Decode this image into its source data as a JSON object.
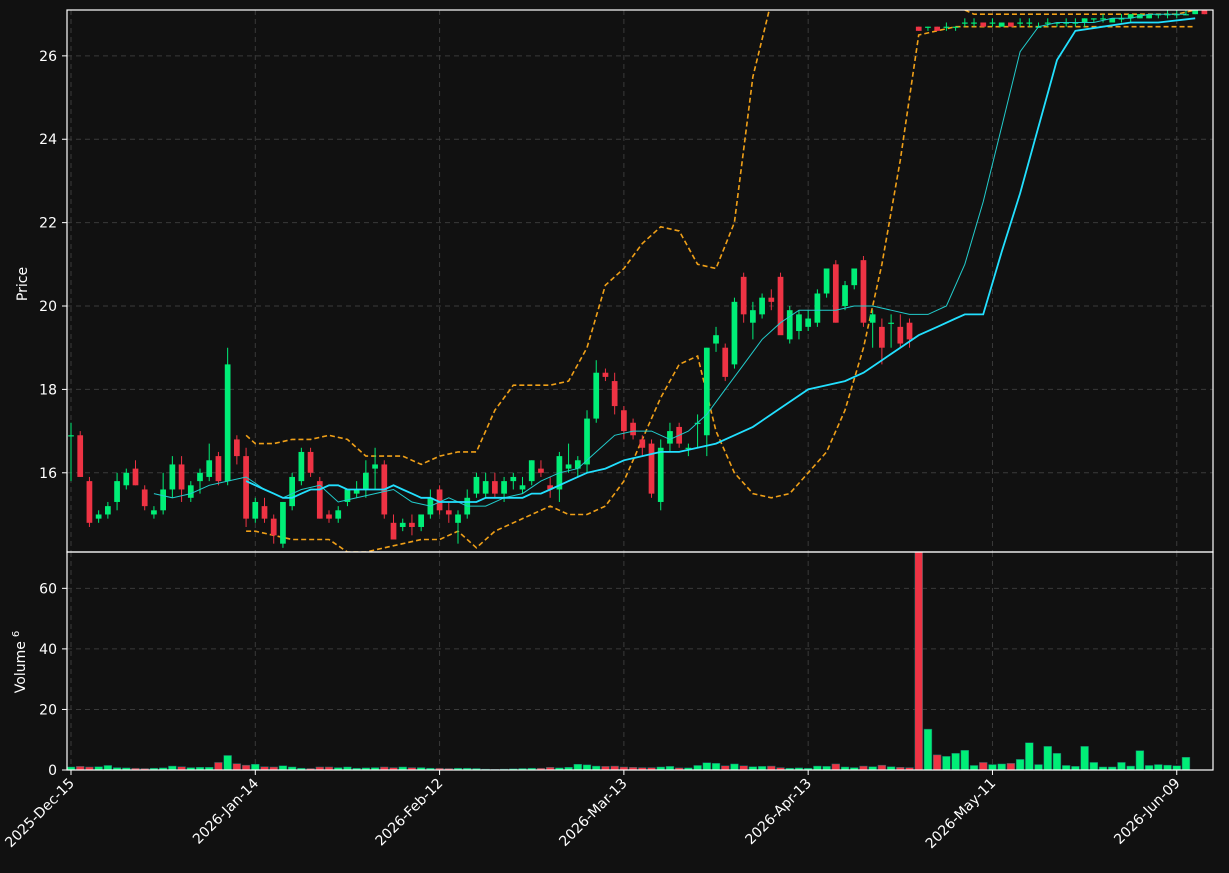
{
  "chart_data": {
    "type": "candlestick",
    "price_panel": {
      "ylabel": "Price",
      "yticks": [
        16,
        18,
        20,
        22,
        24,
        26
      ],
      "ylim": [
        14.1,
        27.1
      ],
      "grid": true
    },
    "volume_panel": {
      "ylabel": "Volume",
      "ylabel_exponent": "6",
      "yticks": [
        0,
        20,
        40,
        60
      ],
      "ylim": [
        0,
        72
      ],
      "grid": true
    },
    "xlim": [
      0,
      123.5
    ],
    "x_ticks": [
      {
        "index": 0,
        "label": "2025-Dec-15"
      },
      {
        "index": 20,
        "label": "2026-Jan-14"
      },
      {
        "index": 40,
        "label": "2026-Feb-12"
      },
      {
        "index": 60,
        "label": "2026-Mar-13"
      },
      {
        "index": 80,
        "label": "2026-Apr-13"
      },
      {
        "index": 100,
        "label": "2026-May-11"
      },
      {
        "index": 120,
        "label": "2026-Jun-09"
      }
    ],
    "candles": [
      [
        16.9,
        17.2,
        15.8,
        16.9
      ],
      [
        16.9,
        17.0,
        15.9,
        15.9
      ],
      [
        15.8,
        15.9,
        14.7,
        14.8
      ],
      [
        14.9,
        15.1,
        14.8,
        15.0
      ],
      [
        15.0,
        15.3,
        14.9,
        15.2
      ],
      [
        15.3,
        16.0,
        15.1,
        15.8
      ],
      [
        15.7,
        16.1,
        15.6,
        16.0
      ],
      [
        16.1,
        16.3,
        15.7,
        15.7
      ],
      [
        15.6,
        15.7,
        15.1,
        15.2
      ],
      [
        15.0,
        15.2,
        14.9,
        15.1
      ],
      [
        15.1,
        16.0,
        15.0,
        15.6
      ],
      [
        15.6,
        16.4,
        15.4,
        16.2
      ],
      [
        16.2,
        16.4,
        15.3,
        15.6
      ],
      [
        15.4,
        15.8,
        15.3,
        15.7
      ],
      [
        15.8,
        16.1,
        15.5,
        16.0
      ],
      [
        15.9,
        16.7,
        15.8,
        16.3
      ],
      [
        16.4,
        16.5,
        15.7,
        15.8
      ],
      [
        15.8,
        19.0,
        15.7,
        18.6
      ],
      [
        16.8,
        16.9,
        16.2,
        16.4
      ],
      [
        16.4,
        16.6,
        14.7,
        14.9
      ],
      [
        14.9,
        15.4,
        14.8,
        15.3
      ],
      [
        15.2,
        15.4,
        14.8,
        14.9
      ],
      [
        14.9,
        15.0,
        14.3,
        14.5
      ],
      [
        14.3,
        15.3,
        14.2,
        15.3
      ],
      [
        15.2,
        16.0,
        15.1,
        15.9
      ],
      [
        15.8,
        16.6,
        15.7,
        16.5
      ],
      [
        16.5,
        16.6,
        15.9,
        16.0
      ],
      [
        15.8,
        15.9,
        14.9,
        14.9
      ],
      [
        15.0,
        15.1,
        14.8,
        14.9
      ],
      [
        14.9,
        15.2,
        14.8,
        15.1
      ],
      [
        15.3,
        15.6,
        15.2,
        15.6
      ],
      [
        15.5,
        15.8,
        15.4,
        15.6
      ],
      [
        15.6,
        16.3,
        15.4,
        16.0
      ],
      [
        16.1,
        16.6,
        15.6,
        16.2
      ],
      [
        16.2,
        16.3,
        14.9,
        15.0
      ],
      [
        14.8,
        15.0,
        14.5,
        14.4
      ],
      [
        14.7,
        14.9,
        14.6,
        14.8
      ],
      [
        14.8,
        15.0,
        14.5,
        14.7
      ],
      [
        14.7,
        15.0,
        14.6,
        15.0
      ],
      [
        15.0,
        15.6,
        14.9,
        15.4
      ],
      [
        15.6,
        15.7,
        15.0,
        15.1
      ],
      [
        15.1,
        15.3,
        14.8,
        15.0
      ],
      [
        14.8,
        15.1,
        14.3,
        15.0
      ],
      [
        15.0,
        15.6,
        14.9,
        15.4
      ],
      [
        15.5,
        16.0,
        15.4,
        15.9
      ],
      [
        15.5,
        16.0,
        15.4,
        15.8
      ],
      [
        15.8,
        16.0,
        15.4,
        15.5
      ],
      [
        15.5,
        15.9,
        15.3,
        15.8
      ],
      [
        15.8,
        16.0,
        15.6,
        15.9
      ],
      [
        15.6,
        15.9,
        15.5,
        15.7
      ],
      [
        15.8,
        16.3,
        15.7,
        16.3
      ],
      [
        16.1,
        16.3,
        15.9,
        16.0
      ],
      [
        15.7,
        15.9,
        15.4,
        15.6
      ],
      [
        15.6,
        16.5,
        15.3,
        16.4
      ],
      [
        16.1,
        16.7,
        16.0,
        16.2
      ],
      [
        16.1,
        16.4,
        15.9,
        16.3
      ],
      [
        16.2,
        17.5,
        16.0,
        17.3
      ],
      [
        17.3,
        18.7,
        17.2,
        18.4
      ],
      [
        18.4,
        18.5,
        18.2,
        18.3
      ],
      [
        18.2,
        18.4,
        17.4,
        17.6
      ],
      [
        17.5,
        17.6,
        16.8,
        17.0
      ],
      [
        17.2,
        17.3,
        16.8,
        16.9
      ],
      [
        16.8,
        16.9,
        16.4,
        16.6
      ],
      [
        16.7,
        16.8,
        15.4,
        15.5
      ],
      [
        15.3,
        16.8,
        15.1,
        16.6
      ],
      [
        16.7,
        17.2,
        16.5,
        17.0
      ],
      [
        17.1,
        17.2,
        16.6,
        16.7
      ],
      [
        16.6,
        16.7,
        16.4,
        16.6
      ],
      [
        17.2,
        17.4,
        16.6,
        17.2
      ],
      [
        16.9,
        19.0,
        16.4,
        19.0
      ],
      [
        19.1,
        19.5,
        18.9,
        19.3
      ],
      [
        19.0,
        19.1,
        18.2,
        18.3
      ],
      [
        18.6,
        20.2,
        18.5,
        20.1
      ],
      [
        20.7,
        20.8,
        19.6,
        19.8
      ],
      [
        19.6,
        20.1,
        19.2,
        19.9
      ],
      [
        19.8,
        20.3,
        19.7,
        20.2
      ],
      [
        20.2,
        20.4,
        19.9,
        20.1
      ],
      [
        20.7,
        20.8,
        19.4,
        19.3
      ],
      [
        19.2,
        20.0,
        19.1,
        19.9
      ],
      [
        19.4,
        19.9,
        19.2,
        19.8
      ],
      [
        19.5,
        19.9,
        19.4,
        19.7
      ],
      [
        19.6,
        20.4,
        19.5,
        20.3
      ],
      [
        20.3,
        20.9,
        20.2,
        20.9
      ],
      [
        21.0,
        21.1,
        19.6,
        19.6
      ],
      [
        20.0,
        20.6,
        19.9,
        20.5
      ],
      [
        20.5,
        20.9,
        20.4,
        20.9
      ],
      [
        21.1,
        21.2,
        19.5,
        19.6
      ],
      [
        19.6,
        19.9,
        19.0,
        19.8
      ],
      [
        19.5,
        19.7,
        18.6,
        19.0
      ],
      [
        19.6,
        19.8,
        19.0,
        19.6
      ],
      [
        19.5,
        19.8,
        19.0,
        19.1
      ],
      [
        19.6,
        19.7,
        19.0,
        19.2
      ],
      [
        26.7,
        26.7,
        26.6,
        26.6
      ],
      [
        26.7,
        26.7,
        26.6,
        26.7
      ],
      [
        26.7,
        26.7,
        26.6,
        26.6
      ],
      [
        26.7,
        26.8,
        26.6,
        26.7
      ],
      [
        26.7,
        26.7,
        26.6,
        26.7
      ],
      [
        26.8,
        26.9,
        26.7,
        26.8
      ],
      [
        26.8,
        26.9,
        26.7,
        26.8
      ],
      [
        26.8,
        26.8,
        26.7,
        26.7
      ],
      [
        26.8,
        26.9,
        26.7,
        26.8
      ],
      [
        26.7,
        26.8,
        26.7,
        26.8
      ],
      [
        26.8,
        26.8,
        26.7,
        26.7
      ],
      [
        26.8,
        26.9,
        26.7,
        26.8
      ],
      [
        26.8,
        26.9,
        26.7,
        26.8
      ],
      [
        26.7,
        26.8,
        26.7,
        26.7
      ],
      [
        26.8,
        26.9,
        26.7,
        26.8
      ],
      [
        26.8,
        26.8,
        26.7,
        26.8
      ],
      [
        26.8,
        26.9,
        26.7,
        26.8
      ],
      [
        26.8,
        26.9,
        26.7,
        26.8
      ],
      [
        26.8,
        26.9,
        26.7,
        26.9
      ],
      [
        26.9,
        26.9,
        26.8,
        26.9
      ],
      [
        26.9,
        27.0,
        26.8,
        26.9
      ],
      [
        26.8,
        26.9,
        26.8,
        26.9
      ],
      [
        26.9,
        27.0,
        26.8,
        26.9
      ],
      [
        26.9,
        27.0,
        26.8,
        27.0
      ],
      [
        26.9,
        27.0,
        26.9,
        27.0
      ],
      [
        26.9,
        27.0,
        26.9,
        27.0
      ],
      [
        27.0,
        27.0,
        26.9,
        27.0
      ],
      [
        27.0,
        27.1,
        26.9,
        27.0
      ],
      [
        27.0,
        27.1,
        26.9,
        27.0
      ],
      [
        27.0,
        27.1,
        27.0,
        27.0
      ],
      [
        27.0,
        27.1,
        27.0,
        27.1
      ],
      [
        27.1,
        27.1,
        27.0,
        27.0
      ]
    ],
    "volume": [
      1.0,
      1.2,
      1.0,
      1.1,
      1.5,
      0.8,
      0.7,
      0.6,
      0.5,
      0.6,
      0.7,
      1.3,
      1.1,
      0.8,
      0.9,
      0.9,
      2.5,
      4.8,
      2.1,
      1.6,
      1.9,
      1.1,
      1.0,
      1.4,
      1.0,
      0.6,
      0.5,
      1.0,
      1.0,
      0.8,
      1.0,
      0.6,
      0.7,
      0.8,
      1.0,
      0.8,
      1.0,
      0.8,
      0.8,
      0.6,
      0.6,
      0.5,
      0.6,
      0.6,
      0.5,
      0.3,
      0.2,
      0.3,
      0.4,
      0.5,
      0.6,
      0.6,
      0.9,
      0.7,
      0.9,
      1.9,
      1.7,
      1.3,
      1.2,
      1.3,
      1.0,
      0.9,
      0.8,
      0.8,
      1.0,
      1.2,
      0.7,
      0.7,
      1.5,
      2.4,
      2.2,
      1.4,
      2.0,
      1.4,
      1.1,
      1.2,
      1.3,
      0.8,
      0.6,
      0.7,
      0.6,
      1.3,
      1.2,
      2.0,
      1.0,
      0.8,
      1.3,
      1.1,
      1.6,
      1.1,
      0.9,
      0.8,
      72,
      13.5,
      5,
      4.5,
      5.5,
      6.5,
      1.5,
      2.5,
      1.8,
      2.0,
      2.2,
      3.5,
      9,
      1.8,
      7.8,
      5.5,
      1.5,
      1.2,
      7.8,
      2.5,
      1.0,
      1.0,
      2.5,
      1.3,
      6.4,
      1.5,
      1.8,
      1.6,
      1.4,
      4.2
    ],
    "ma_slow": [
      15.8,
      15.7,
      15.6,
      15.5,
      15.4,
      15.4,
      15.5,
      15.6,
      15.6,
      15.7,
      15.7,
      15.6,
      15.6,
      15.6,
      15.6,
      15.6,
      15.7,
      15.6,
      15.5,
      15.4,
      15.4,
      15.3,
      15.3,
      15.3,
      15.3,
      15.3,
      15.4,
      15.4,
      15.4,
      15.4,
      15.4,
      15.5,
      15.5,
      15.6,
      15.8,
      16.0,
      16.1,
      16.3,
      16.4,
      16.5,
      16.5,
      16.6,
      16.7,
      16.9,
      17.1,
      17.4,
      17.7,
      18.0,
      18.1,
      18.2,
      18.4,
      18.7,
      19.0,
      19.3,
      19.5,
      19.7,
      19.8,
      19.8,
      19.8,
      21.3,
      22.7,
      24.3,
      25.9,
      26.6,
      26.7,
      26.8,
      26.8,
      26.9
    ],
    "ma_slow_x": [
      19,
      20,
      21,
      22,
      23,
      24,
      25,
      26,
      27,
      28,
      29,
      30,
      31,
      32,
      33,
      34,
      35,
      36,
      37,
      38,
      39,
      40,
      41,
      42,
      43,
      44,
      45,
      46,
      47,
      48,
      49,
      50,
      51,
      52,
      54,
      56,
      58,
      60,
      62,
      64,
      66,
      68,
      70,
      72,
      74,
      76,
      78,
      80,
      82,
      84,
      86,
      88,
      90,
      92,
      94,
      96,
      97,
      98,
      99,
      101,
      103,
      105,
      107,
      109,
      112,
      115,
      118,
      122
    ],
    "ma_fast_x": [
      9,
      11,
      13,
      15,
      17,
      19,
      21,
      23,
      25,
      27,
      29,
      31,
      33,
      35,
      37,
      39,
      41,
      43,
      45,
      47,
      49,
      51,
      53,
      55,
      57,
      59,
      61,
      63,
      65,
      67,
      69,
      71,
      73,
      75,
      77,
      79,
      81,
      83,
      85,
      87,
      89,
      91,
      93,
      95,
      97,
      99,
      101,
      103,
      105,
      107,
      109,
      111,
      113,
      115,
      117,
      119,
      121
    ],
    "ma_fast": [
      15.5,
      15.4,
      15.5,
      15.7,
      15.8,
      15.9,
      15.6,
      15.4,
      15.6,
      15.7,
      15.3,
      15.4,
      15.5,
      15.6,
      15.3,
      15.2,
      15.4,
      15.2,
      15.2,
      15.4,
      15.5,
      15.8,
      16.0,
      16.1,
      16.5,
      16.9,
      17.0,
      17.0,
      16.8,
      17.0,
      17.4,
      18.0,
      18.6,
      19.2,
      19.6,
      19.9,
      19.9,
      19.9,
      20.0,
      20.0,
      19.9,
      19.8,
      19.8,
      20.0,
      21.0,
      22.5,
      24.3,
      26.1,
      26.7,
      26.8,
      26.8,
      26.8,
      26.9,
      26.9,
      27.0,
      27.0,
      27.0
    ],
    "bb_x": [
      19,
      20,
      22,
      24,
      26,
      28,
      30,
      32,
      34,
      36,
      38,
      40,
      42,
      44,
      46,
      48,
      50,
      52,
      54,
      56,
      58,
      60,
      62,
      64,
      66,
      68,
      70,
      72,
      74,
      76,
      78,
      80,
      82,
      84,
      86,
      88,
      90,
      92,
      94,
      96,
      97,
      98,
      99,
      100,
      102,
      104,
      106,
      108,
      110,
      112,
      114,
      116,
      118,
      120,
      122
    ],
    "bb_upper": [
      16.9,
      16.7,
      16.7,
      16.8,
      16.8,
      16.9,
      16.8,
      16.4,
      16.4,
      16.4,
      16.2,
      16.4,
      16.5,
      16.5,
      17.5,
      18.1,
      18.1,
      18.1,
      18.2,
      19.0,
      20.5,
      20.9,
      21.5,
      21.9,
      21.8,
      21.0,
      20.9,
      22.0,
      25.5,
      27.3,
      28.5,
      29.0,
      30.0,
      30.5,
      31.0,
      31.0,
      30.0,
      29.0,
      28.0,
      27.5,
      27.1,
      27.0,
      27.0,
      27.0,
      27.0,
      27.0,
      27.0,
      27.0,
      27.0,
      27.0,
      27.0,
      27.0,
      27.0,
      27.0,
      27.1
    ],
    "bb_lower": [
      14.6,
      14.6,
      14.5,
      14.4,
      14.4,
      14.4,
      14.1,
      14.1,
      14.2,
      14.3,
      14.4,
      14.4,
      14.6,
      14.2,
      14.6,
      14.8,
      15.0,
      15.2,
      15.0,
      15.0,
      15.2,
      15.8,
      16.8,
      17.8,
      18.6,
      18.8,
      17.0,
      16.0,
      15.5,
      15.4,
      15.5,
      16.0,
      16.5,
      17.5,
      19.0,
      21.0,
      23.5,
      26.5,
      26.6,
      26.7,
      26.7,
      26.7,
      26.7,
      26.7,
      26.7,
      26.7,
      26.7,
      26.7,
      26.7,
      26.7,
      26.7,
      26.7,
      26.7,
      26.7,
      26.7
    ],
    "colors": {
      "background": "#111111",
      "up": "#00ee77",
      "down": "#ee3344",
      "ma_fast": "#22cccc",
      "ma_slow": "#22e0ff",
      "bands": "#f0a018",
      "grid": "#3a3a3a",
      "text": "#ffffff"
    }
  }
}
